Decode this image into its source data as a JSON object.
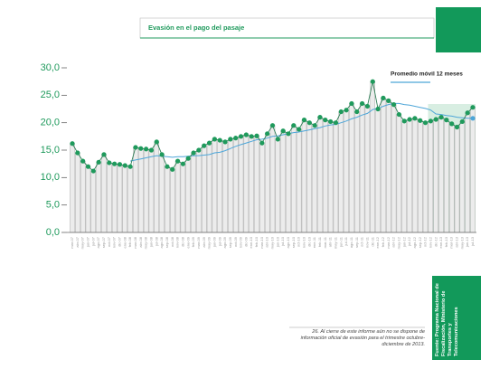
{
  "chart_data": {
    "type": "line",
    "title": "Evasión en el pago del pasaje",
    "categories": [
      "mar-07",
      "abr-07",
      "may-07",
      "jun-07",
      "jul-07",
      "ago-07",
      "sep-07",
      "oct-07",
      "nov-07",
      "dic-07",
      "ene-08",
      "feb-08",
      "mar-08",
      "abr-08",
      "may-08",
      "jun-08",
      "jul-08",
      "ago-08",
      "sep-08",
      "oct-08",
      "nov-08",
      "dic-08",
      "ene-09",
      "feb-09",
      "mar-09",
      "abr-09",
      "may-09",
      "jun-09",
      "jul-09",
      "ago-09",
      "sep-09",
      "oct-09",
      "nov-09",
      "dic-09",
      "ene-10",
      "feb-10",
      "mar-10",
      "abr-10",
      "may-10",
      "jun-10",
      "jul-10",
      "ago-10",
      "sep-10",
      "oct-10",
      "nov-10",
      "dic-10",
      "ene-11",
      "feb-11",
      "mar-11",
      "abr-11",
      "may-11",
      "jun-11",
      "jul-11",
      "ago-11",
      "sep-11",
      "oct-11",
      "nov-11",
      "dic-11",
      "ene-12",
      "feb-12",
      "mar-12",
      "abr-12",
      "may-12",
      "jun-12",
      "jul-12",
      "ago-12",
      "sep-12",
      "oct-12",
      "nov-12",
      "dic-12",
      "ene-13",
      "feb-13",
      "mar-13",
      "abr-13",
      "may-13",
      "jun-13",
      "jul-13"
    ],
    "series": [
      {
        "color": "#1f9a5c",
        "values": [
          16.2,
          14.5,
          13.0,
          12.0,
          11.2,
          12.8,
          14.2,
          12.7,
          12.5,
          12.4,
          12.2,
          12.0,
          15.5,
          15.3,
          15.2,
          15.0,
          16.5,
          14.2,
          12.0,
          11.5,
          13.0,
          12.5,
          13.5,
          14.5,
          15.0,
          15.8,
          16.3,
          17.0,
          16.8,
          16.5,
          17.0,
          17.2,
          17.5,
          17.8,
          17.5,
          17.6,
          16.3,
          18.0,
          19.5,
          17.0,
          18.5,
          18.0,
          19.5,
          18.8,
          20.5,
          20.0,
          19.5,
          21.0,
          20.5,
          20.2,
          20.0,
          22.0,
          22.3,
          23.5,
          22.0,
          23.5,
          23.0,
          27.5,
          22.5,
          24.5,
          24.0,
          23.3,
          21.5,
          20.3,
          20.6,
          20.8,
          20.4,
          20.0,
          20.3,
          20.6,
          21.0,
          20.5,
          19.8,
          19.2,
          20.2,
          21.8,
          22.8
        ]
      },
      {
        "name": "Promedio móvil 12 meses",
        "color": "#4ea6d8",
        "values": [
          null,
          null,
          null,
          null,
          null,
          null,
          null,
          null,
          null,
          null,
          null,
          13.0,
          13.2,
          13.4,
          13.6,
          13.8,
          14.0,
          13.9,
          13.8,
          13.7,
          13.8,
          13.8,
          13.9,
          14.0,
          14.0,
          14.1,
          14.2,
          14.5,
          14.6,
          14.9,
          15.3,
          15.7,
          16.0,
          16.3,
          16.6,
          16.9,
          17.0,
          17.2,
          17.5,
          17.6,
          17.8,
          18.0,
          18.2,
          18.3,
          18.5,
          18.7,
          18.9,
          19.1,
          19.4,
          19.6,
          19.7,
          20.0,
          20.3,
          20.7,
          21.0,
          21.4,
          21.7,
          22.4,
          22.6,
          23.0,
          23.3,
          23.5,
          23.5,
          23.3,
          23.2,
          23.0,
          22.8,
          22.6,
          22.3,
          21.6,
          21.5,
          21.3,
          21.2,
          21.0,
          20.9,
          20.8,
          20.8
        ]
      }
    ],
    "ylim": [
      0,
      30
    ],
    "yticks": [
      {
        "value": 0,
        "label": "0,0"
      },
      {
        "value": 5,
        "label": "5,0"
      },
      {
        "value": 10,
        "label": "10,0"
      },
      {
        "value": 15,
        "label": "15,0"
      },
      {
        "value": 20,
        "label": "20,0"
      },
      {
        "value": 25,
        "label": "25,0"
      },
      {
        "value": 30,
        "label": "30,0"
      }
    ],
    "footnote": "26. Al cierre de este informe aún no se dispone de información oficial de evasión para el trimestre octubre- diciembre de 2013.",
    "source": "Fuente: Programa Nacional de Fiscalización, Ministerio de Transportes y Telecomunicaciones"
  }
}
